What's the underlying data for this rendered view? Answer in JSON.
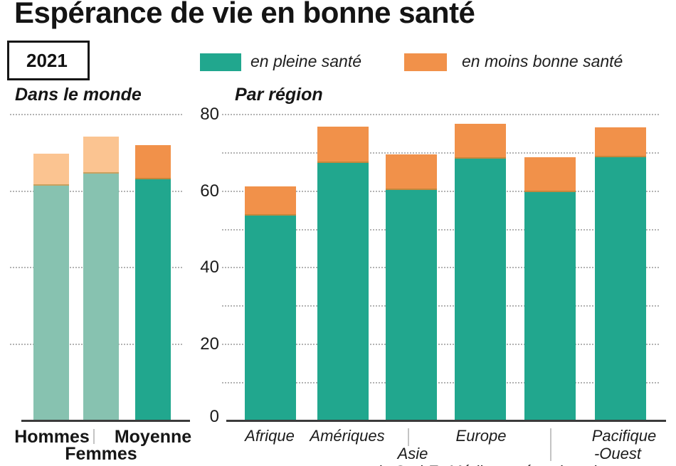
{
  "title": "Espérance de vie en bonne santé",
  "year_badge": "2021",
  "legend": [
    {
      "label": "en pleine santé",
      "color": "#21A78E"
    },
    {
      "label": "en moins bonne santé",
      "color": "#F1914A"
    }
  ],
  "colors": {
    "teal": "#21A78E",
    "orange": "#F1914A",
    "teal_muted": "#87C2B0",
    "orange_muted": "#FBC491",
    "segment_boundary": "rgba(150,125,45,0.5)",
    "grid": "#b3b3b3",
    "axis": "#3b3b3b"
  },
  "y_axis": {
    "tick_values": [
      0,
      20,
      40,
      60,
      80
    ],
    "tick_labels": [
      "0",
      "20",
      "40",
      "60",
      "80"
    ]
  },
  "chart_data": [
    {
      "type": "bar",
      "stacked": true,
      "title": "Dans le monde",
      "ylim": [
        0,
        80
      ],
      "grid_step": 20,
      "categories": [
        "Hommes",
        "Femmes",
        "Moyenne"
      ],
      "series": [
        {
          "name": "en pleine santé",
          "values": [
            61.5,
            64.5,
            63.0
          ]
        },
        {
          "name": "en moins bonne santé",
          "values": [
            8.3,
            9.7,
            9.0
          ]
        }
      ],
      "totals": [
        69.8,
        74.2,
        72.0
      ],
      "muted_categories": [
        "Hommes",
        "Femmes"
      ],
      "axis_label_rows": [
        [
          "Hommes",
          "Moyenne"
        ],
        [
          "Femmes"
        ]
      ]
    },
    {
      "type": "bar",
      "stacked": true,
      "title": "Par région",
      "ylim": [
        0,
        80
      ],
      "grid_step": 10,
      "categories": [
        "Afrique",
        "Amériques",
        "Asie du Sud-Est",
        "Europe",
        "Méditerranée orientale",
        "Pacifique-Ouest"
      ],
      "series": [
        {
          "name": "en pleine santé",
          "values": [
            53.7,
            67.3,
            60.3,
            68.4,
            59.8,
            68.9
          ]
        },
        {
          "name": "en moins bonne santé",
          "values": [
            7.5,
            9.5,
            9.2,
            9.1,
            9.1,
            7.8
          ]
        }
      ],
      "totals": [
        61.2,
        76.8,
        69.5,
        77.5,
        68.9,
        76.7
      ],
      "muted_categories": [],
      "axis_label_rows": [
        [
          "Afrique",
          "Amériques",
          "Europe",
          "Pacifique"
        ],
        [
          "Asie",
          "-Ouest"
        ],
        [
          "de Sud-Est",
          "Méditerranée orientale"
        ]
      ]
    }
  ]
}
